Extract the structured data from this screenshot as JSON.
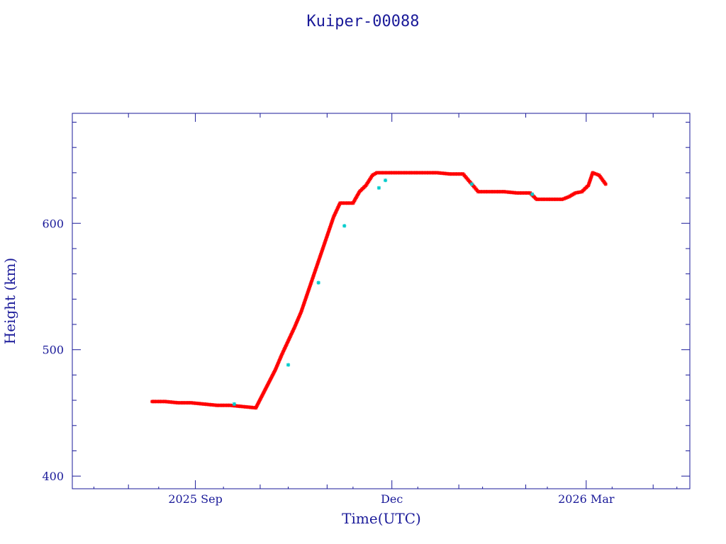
{
  "chart_data": {
    "type": "scatter",
    "title": "Kuiper-00088",
    "xlabel": "Time(UTC)",
    "ylabel": "Height (km)",
    "x_type": "date",
    "xlim": [
      "2025-07-06",
      "2026-04-18"
    ],
    "ylim": [
      390,
      687
    ],
    "grid": false,
    "legend": "none",
    "x_tick_labels": [
      {
        "date": "2025-09-01",
        "label": "2025 Sep"
      },
      {
        "date": "2025-12-01",
        "label": "Dec"
      },
      {
        "date": "2026-03-01",
        "label": "2026 Mar"
      }
    ],
    "y_tick_labels": [
      {
        "value": 400,
        "label": "400"
      },
      {
        "value": 500,
        "label": "500"
      },
      {
        "value": 600,
        "label": "600"
      }
    ],
    "series": [
      {
        "color": "#ff0000",
        "marker": "star",
        "x": [
          "2025-08-12",
          "2025-08-18",
          "2025-08-24",
          "2025-08-30",
          "2025-09-05",
          "2025-09-11",
          "2025-09-17",
          "2025-09-23",
          "2025-09-29",
          "2025-10-02",
          "2025-10-05",
          "2025-10-08",
          "2025-10-11",
          "2025-10-14",
          "2025-10-17",
          "2025-10-20",
          "2025-10-23",
          "2025-10-26",
          "2025-10-29",
          "2025-11-01",
          "2025-11-04",
          "2025-11-07",
          "2025-11-10",
          "2025-11-13",
          "2025-11-16",
          "2025-11-19",
          "2025-11-22",
          "2025-11-24",
          "2025-11-26",
          "2025-11-28",
          "2025-11-30",
          "2025-12-04",
          "2025-12-10",
          "2025-12-16",
          "2025-12-22",
          "2025-12-28",
          "2026-01-03",
          "2026-01-07",
          "2026-01-10",
          "2026-01-16",
          "2026-01-22",
          "2026-01-28",
          "2026-02-03",
          "2026-02-06",
          "2026-02-12",
          "2026-02-18",
          "2026-02-21",
          "2026-02-24",
          "2026-02-27",
          "2026-03-02",
          "2026-03-04",
          "2026-03-07",
          "2026-03-10"
        ],
        "y": [
          459,
          459,
          458,
          458,
          457,
          456,
          456,
          455,
          454,
          464,
          474,
          484,
          496,
          507,
          518,
          530,
          545,
          560,
          575,
          590,
          605,
          616,
          616,
          616,
          625,
          630,
          638,
          640,
          640,
          640,
          640,
          640,
          640,
          640,
          640,
          639,
          639,
          631,
          625,
          625,
          625,
          624,
          624,
          619,
          619,
          619,
          621,
          624,
          625,
          630,
          640,
          638,
          631
        ]
      },
      {
        "color": "#00cccc",
        "marker": "star",
        "x": [
          "2025-09-19",
          "2025-10-14",
          "2025-10-28",
          "2025-11-09",
          "2025-11-25",
          "2025-11-28",
          "2026-01-07",
          "2026-02-04"
        ],
        "y": [
          457,
          488,
          553,
          598,
          628,
          634,
          631,
          623
        ]
      }
    ]
  }
}
